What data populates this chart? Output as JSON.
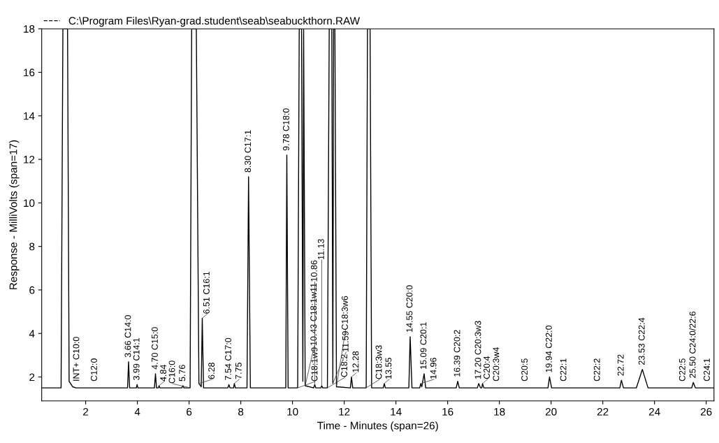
{
  "chart_data": {
    "type": "line",
    "xlabel": "Time - Minutes (span=26)",
    "ylabel": "Response - MilliVolts (span=17)",
    "xlim": [
      0.3,
      26.3
    ],
    "ylim": [
      0.9,
      18
    ],
    "xticks": [
      2,
      4,
      6,
      8,
      10,
      12,
      14,
      16,
      18,
      20,
      22,
      24,
      26
    ],
    "yticks": [
      2,
      4,
      6,
      8,
      10,
      12,
      14,
      16,
      18
    ],
    "grid": false,
    "legend": "top left",
    "line_style": "solid",
    "marker": "none",
    "series": [
      {
        "name": "C:\\Program Files\\Ryan-grad.student\\seab\\seabuckthorn.RAW",
        "color": "#000000",
        "x": [
          0.3,
          1.05,
          1.12,
          1.3,
          1.36,
          1.5,
          1.62,
          3.62,
          3.66,
          3.7,
          3.96,
          3.99,
          4.02,
          4.66,
          4.7,
          4.74,
          4.81,
          4.84,
          4.87,
          5.72,
          5.76,
          5.8,
          6.04,
          6.1,
          6.2,
          6.28,
          6.38,
          6.47,
          6.51,
          6.56,
          7.5,
          7.54,
          7.58,
          7.72,
          7.75,
          7.79,
          8.24,
          8.3,
          8.37,
          9.74,
          9.78,
          9.83,
          10.2,
          10.26,
          10.35,
          10.4,
          10.43,
          10.49,
          10.82,
          10.86,
          10.9,
          11.1,
          11.13,
          11.17,
          11.35,
          11.42,
          11.52,
          11.56,
          11.59,
          11.64,
          11.7,
          12.24,
          12.28,
          12.33,
          12.85,
          12.9,
          13.0,
          13.06,
          13.51,
          13.55,
          13.59,
          14.5,
          14.55,
          14.62,
          14.92,
          14.96,
          15.0,
          15.09,
          15.15,
          16.33,
          16.39,
          16.45,
          17.15,
          17.2,
          17.27,
          17.32,
          17.35,
          17.4,
          19.88,
          19.94,
          20.02,
          22.66,
          22.72,
          22.8,
          23.3,
          23.53,
          23.75,
          25.44,
          25.5,
          25.58,
          26.3
        ],
        "values": [
          1.5,
          1.5,
          18,
          18,
          1.8,
          1.55,
          1.5,
          1.5,
          2.7,
          1.5,
          1.5,
          1.65,
          1.5,
          1.5,
          2.15,
          1.5,
          1.5,
          1.6,
          1.5,
          1.5,
          1.6,
          1.5,
          1.5,
          18,
          18,
          18,
          1.7,
          1.55,
          4.7,
          1.5,
          1.5,
          1.65,
          1.5,
          1.5,
          1.7,
          1.5,
          1.5,
          11.2,
          1.5,
          1.5,
          12.2,
          1.5,
          1.5,
          18,
          18,
          1.8,
          18,
          1.6,
          1.5,
          1.65,
          1.5,
          1.5,
          1.6,
          1.5,
          1.5,
          18,
          18,
          1.7,
          18,
          18,
          1.55,
          1.5,
          2.0,
          1.5,
          1.5,
          18,
          18,
          1.5,
          1.5,
          1.7,
          1.5,
          1.5,
          3.85,
          1.5,
          1.5,
          1.7,
          1.55,
          2.15,
          1.5,
          1.5,
          1.8,
          1.5,
          1.5,
          1.7,
          1.5,
          1.5,
          1.7,
          1.5,
          1.5,
          2.0,
          1.5,
          1.5,
          1.85,
          1.5,
          1.5,
          2.35,
          1.5,
          1.5,
          1.75,
          1.5,
          1.5
        ]
      }
    ],
    "annotations": [
      {
        "text": "INT+ C10:0",
        "x": 1.66,
        "y": 1.6
      },
      {
        "text": "C12:0",
        "x": 2.35,
        "y": 1.6
      },
      {
        "text": "3.66 C14:0",
        "x": 3.66,
        "y": 2.7
      },
      {
        "text": "3.99 C14:1",
        "x": 3.99,
        "y": 1.65
      },
      {
        "text": "4.70 C15:0",
        "x": 4.7,
        "y": 2.15
      },
      {
        "text": "4.84",
        "x": 4.84,
        "y": 1.6
      },
      {
        "text": "5.76",
        "x": 5.76,
        "y": 1.6
      },
      {
        "text": "C16:0",
        "x": 6.04,
        "y": 1.5
      },
      {
        "text": "6.28",
        "x": 6.38,
        "y": 1.7
      },
      {
        "text": "6.51 C16:1",
        "x": 6.51,
        "y": 4.7
      },
      {
        "text": "7.54 C17:0",
        "x": 7.54,
        "y": 1.65
      },
      {
        "text": "7.75",
        "x": 7.75,
        "y": 1.7
      },
      {
        "text": "8.30 C17:1",
        "x": 8.3,
        "y": 11.2
      },
      {
        "text": "9.78 C18:0",
        "x": 9.78,
        "y": 12.2
      },
      {
        "text": "C18:1w9",
        "x": 10.2,
        "y": 1.5
      },
      {
        "text": "10.43 C18:1w11",
        "x": 10.49,
        "y": 1.6
      },
      {
        "text": "10.86",
        "x": 10.86,
        "y": 1.65
      },
      {
        "text": "11.13",
        "x": 11.13,
        "y": 1.6
      },
      {
        "text": "C18:2",
        "x": 11.35,
        "y": 1.5
      },
      {
        "text": "11.59",
        "x": 11.56,
        "y": 1.7
      },
      {
        "text": "C18:3w6",
        "x": 11.7,
        "y": 1.55
      },
      {
        "text": "12.28",
        "x": 12.28,
        "y": 2.0
      },
      {
        "text": "C18:3w3",
        "x": 12.85,
        "y": 1.5
      },
      {
        "text": "13.55",
        "x": 13.55,
        "y": 1.7
      },
      {
        "text": "14.55 C20:0",
        "x": 14.55,
        "y": 3.85
      },
      {
        "text": "14.96",
        "x": 14.96,
        "y": 1.7
      },
      {
        "text": "15.09 C20:1",
        "x": 15.09,
        "y": 2.15
      },
      {
        "text": "16.39 C20:2",
        "x": 16.39,
        "y": 1.8
      },
      {
        "text": "17.20 C20:3w3",
        "x": 17.2,
        "y": 1.7
      },
      {
        "text": "C20:4",
        "x": 17.35,
        "y": 1.7
      },
      {
        "text": "C20:3w4",
        "x": 17.9,
        "y": 1.6
      },
      {
        "text": "C20:5",
        "x": 19.0,
        "y": 1.6
      },
      {
        "text": "19.94 C22:0",
        "x": 19.94,
        "y": 2.0
      },
      {
        "text": "C22:1",
        "x": 20.5,
        "y": 1.6
      },
      {
        "text": "C22:2",
        "x": 21.8,
        "y": 1.6
      },
      {
        "text": "22.72",
        "x": 22.72,
        "y": 1.85
      },
      {
        "text": "23.53 C22:4",
        "x": 23.53,
        "y": 2.35
      },
      {
        "text": "C22:5",
        "x": 25.1,
        "y": 1.6
      },
      {
        "text": "25.50 C24:0/22:6",
        "x": 25.5,
        "y": 1.75
      },
      {
        "text": "C24:1",
        "x": 26.05,
        "y": 1.6
      }
    ]
  }
}
